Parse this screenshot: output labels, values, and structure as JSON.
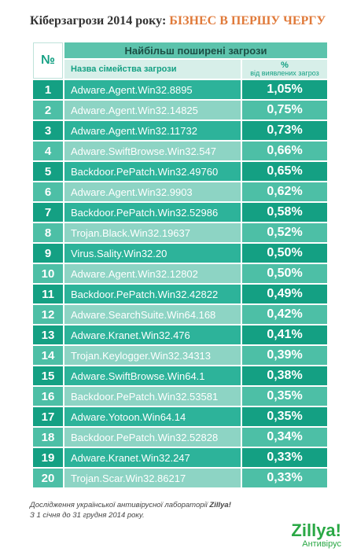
{
  "title": {
    "main": "Кіберзагрози 2014 року:",
    "highlight": "БІЗНЕС В ПЕРШУ ЧЕРГУ"
  },
  "table": {
    "header": {
      "number": "№",
      "group": "Найбільш поширені загрози",
      "name": "Назва сімейства загрози",
      "percent": "%",
      "percent_note": "від виявлених загроз"
    },
    "rows": [
      [
        "1",
        "Adware.Agent.Win32.8895",
        "1,05%"
      ],
      [
        "2",
        "Adware.Agent.Win32.14825",
        "0,75%"
      ],
      [
        "3",
        "Adware.Agent.Win32.11732",
        "0,73%"
      ],
      [
        "4",
        "Adware.SwiftBrowse.Win32.547",
        "0,66%"
      ],
      [
        "5",
        "Backdoor.PePatch.Win32.49760",
        "0,65%"
      ],
      [
        "6",
        "Adware.Agent.Win32.9903",
        "0,62%"
      ],
      [
        "7",
        "Backdoor.PePatch.Win32.52986",
        "0,58%"
      ],
      [
        "8",
        "Trojan.Black.Win32.19637",
        "0,52%"
      ],
      [
        "9",
        "Virus.Sality.Win32.20",
        "0,50%"
      ],
      [
        "10",
        "Adware.Agent.Win32.12802",
        "0,50%"
      ],
      [
        "11",
        "Backdoor.PePatch.Win32.42822",
        "0,49%"
      ],
      [
        "12",
        "Adware.SearchSuite.Win64.168",
        "0,42%"
      ],
      [
        "13",
        "Adware.Kranet.Win32.476",
        "0,41%"
      ],
      [
        "14",
        "Trojan.Keylogger.Win32.34313",
        "0,39%"
      ],
      [
        "15",
        "Adware.SwiftBrowse.Win64.1",
        "0,38%"
      ],
      [
        "16",
        "Backdoor.PePatch.Win32.53581",
        "0,35%"
      ],
      [
        "17",
        "Adware.Yotoon.Win64.14",
        "0,35%"
      ],
      [
        "18",
        "Backdoor.PePatch.Win32.52828",
        "0,34%"
      ],
      [
        "19",
        "Adware.Kranet.Win32.247",
        "0,33%"
      ],
      [
        "20",
        "Trojan.Scar.Win32.86217",
        "0,33%"
      ]
    ]
  },
  "footer": {
    "line1": "Дослідження української антивірусної лабораторії ",
    "brand": "Zillya!",
    "line2": "З 1 січня до 31 грудня 2014 року."
  },
  "logo": {
    "name": "Zillya!",
    "sub": "Антивірус"
  }
}
